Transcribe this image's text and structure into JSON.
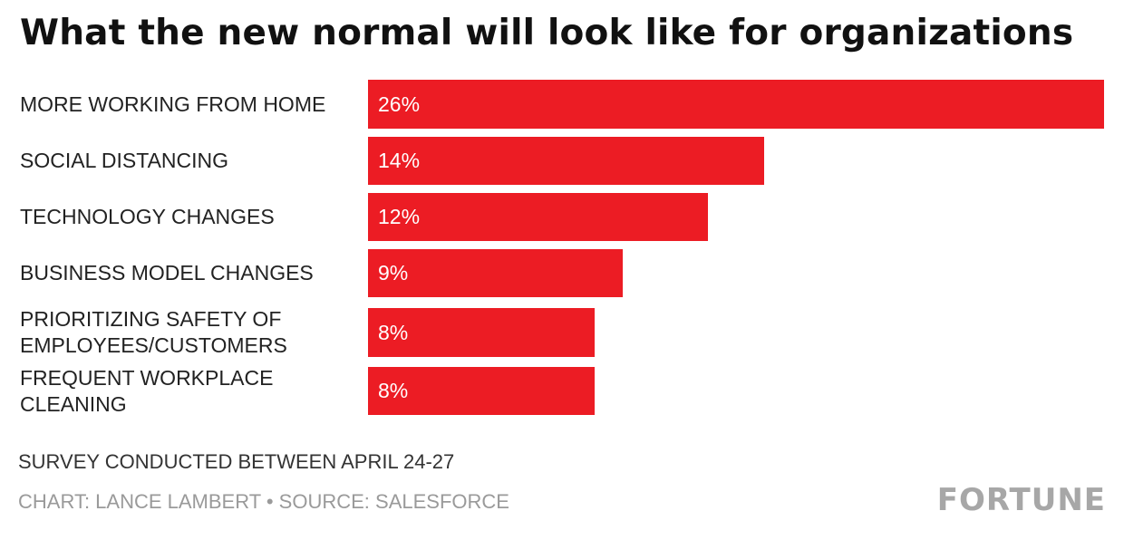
{
  "chart_data": {
    "type": "bar",
    "orientation": "horizontal",
    "title": "What the new normal will look like for organizations",
    "categories": [
      "MORE WORKING FROM HOME",
      "SOCIAL DISTANCING",
      "TECHNOLOGY CHANGES",
      "BUSINESS MODEL CHANGES",
      "PRIORITIZING SAFETY OF\nEMPLOYEES/CUSTOMERS",
      "FREQUENT WORKPLACE CLEANING"
    ],
    "values": [
      26,
      14,
      12,
      9,
      8,
      8
    ],
    "value_labels": [
      "26%",
      "14%",
      "12%",
      "9%",
      "8%",
      "8%"
    ],
    "unit": "%",
    "xlim": [
      0,
      26
    ],
    "grid": false,
    "legend": "none",
    "bar_color": "#ec1c24",
    "label_color": "#ffffff"
  },
  "note": "SURVEY CONDUCTED BETWEEN APRIL 24-27",
  "credit": "CHART: LANCE LAMBERT • SOURCE: SALESFORCE",
  "brand": "FORTUNE"
}
